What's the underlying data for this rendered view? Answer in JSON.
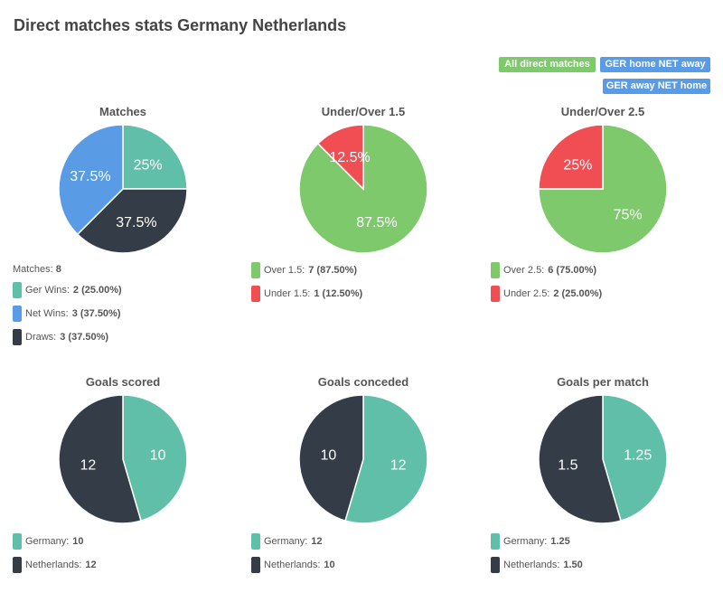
{
  "title": "Direct matches stats Germany Netherlands",
  "filters": {
    "all": "All direct matches",
    "home": "GER home NET away",
    "away": "GER away NET home"
  },
  "colors": {
    "teal": "#5fbfa9",
    "blue": "#5a9be6",
    "dark": "#343c47",
    "green": "#7dc96b",
    "red": "#f04e52"
  },
  "chart_data": [
    {
      "type": "pie",
      "title": "Matches",
      "slices": [
        {
          "name": "Ger Wins",
          "value": 2,
          "label": "25%",
          "color": "#5fbfa9"
        },
        {
          "name": "Draws",
          "value": 3,
          "label": "37.5%",
          "color": "#343c47"
        },
        {
          "name": "Net Wins",
          "value": 3,
          "label": "37.5%",
          "color": "#5a9be6"
        }
      ],
      "legend_header": {
        "label": "Matches:",
        "value": "8"
      },
      "legend": [
        {
          "label": "Ger Wins:",
          "value": "2 (25.00%)",
          "color": "#5fbfa9"
        },
        {
          "label": "Net Wins:",
          "value": "3 (37.50%)",
          "color": "#5a9be6"
        },
        {
          "label": "Draws:",
          "value": "3 (37.50%)",
          "color": "#343c47"
        }
      ]
    },
    {
      "type": "pie",
      "title": "Under/Over 1.5",
      "slices": [
        {
          "name": "Over 1.5",
          "value": 7,
          "label": "87.5%",
          "color": "#7dc96b"
        },
        {
          "name": "Under 1.5",
          "value": 1,
          "label": "12.5%",
          "color": "#f04e52"
        }
      ],
      "legend": [
        {
          "label": "Over 1.5:",
          "value": "7 (87.50%)",
          "color": "#7dc96b"
        },
        {
          "label": "Under 1.5:",
          "value": "1 (12.50%)",
          "color": "#f04e52"
        }
      ]
    },
    {
      "type": "pie",
      "title": "Under/Over 2.5",
      "slices": [
        {
          "name": "Over 2.5",
          "value": 6,
          "label": "75%",
          "color": "#7dc96b"
        },
        {
          "name": "Under 2.5",
          "value": 2,
          "label": "25%",
          "color": "#f04e52"
        }
      ],
      "legend": [
        {
          "label": "Over 2.5:",
          "value": "6 (75.00%)",
          "color": "#7dc96b"
        },
        {
          "label": "Under 2.5:",
          "value": "2 (25.00%)",
          "color": "#f04e52"
        }
      ]
    },
    {
      "type": "pie",
      "title": "Goals scored",
      "slices": [
        {
          "name": "Germany",
          "value": 10,
          "label": "10",
          "color": "#5fbfa9"
        },
        {
          "name": "Netherlands",
          "value": 12,
          "label": "12",
          "color": "#343c47"
        }
      ],
      "legend": [
        {
          "label": "Germany:",
          "value": "10",
          "color": "#5fbfa9"
        },
        {
          "label": "Netherlands:",
          "value": "12",
          "color": "#343c47"
        }
      ]
    },
    {
      "type": "pie",
      "title": "Goals conceded",
      "slices": [
        {
          "name": "Germany",
          "value": 12,
          "label": "12",
          "color": "#5fbfa9"
        },
        {
          "name": "Netherlands",
          "value": 10,
          "label": "10",
          "color": "#343c47"
        }
      ],
      "legend": [
        {
          "label": "Germany:",
          "value": "12",
          "color": "#5fbfa9"
        },
        {
          "label": "Netherlands:",
          "value": "10",
          "color": "#343c47"
        }
      ]
    },
    {
      "type": "pie",
      "title": "Goals per match",
      "slices": [
        {
          "name": "Germany",
          "value": 1.25,
          "label": "1.25",
          "color": "#5fbfa9"
        },
        {
          "name": "Netherlands",
          "value": 1.5,
          "label": "1.5",
          "color": "#343c47"
        }
      ],
      "legend": [
        {
          "label": "Germany:",
          "value": "1.25",
          "color": "#5fbfa9"
        },
        {
          "label": "Netherlands:",
          "value": "1.50",
          "color": "#343c47"
        }
      ]
    }
  ]
}
